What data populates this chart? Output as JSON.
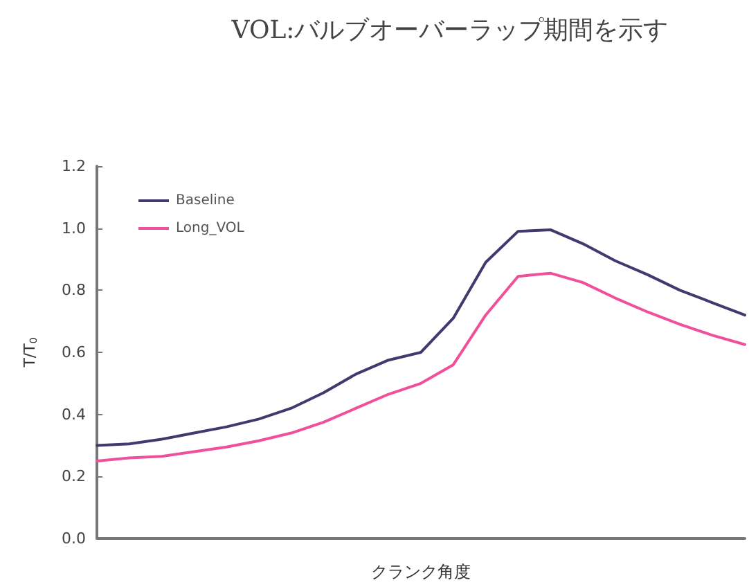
{
  "chart_data": {
    "type": "line",
    "title": "VOL:バルブオーバーラップ期間を示す",
    "xlabel": "クランク角度",
    "ylabel": "T/T$_{0}$",
    "categories": [
      null,
      null,
      null,
      null,
      null,
      null,
      null,
      null,
      null,
      null,
      null,
      null,
      null,
      null,
      null,
      null,
      null,
      null,
      null,
      null,
      null
    ],
    "series": [
      {
        "name": "Baseline",
        "color": "#413a6e",
        "values": [
          0.3,
          0.305,
          0.32,
          0.34,
          0.36,
          0.385,
          0.42,
          0.47,
          0.53,
          0.575,
          0.6,
          0.71,
          0.89,
          0.99,
          0.995,
          0.95,
          0.895,
          0.85,
          0.8,
          0.76,
          0.72
        ]
      },
      {
        "name": "Long_VOL",
        "color": "#f0509a",
        "values": [
          0.25,
          0.26,
          0.265,
          0.28,
          0.295,
          0.315,
          0.34,
          0.375,
          0.42,
          0.465,
          0.5,
          0.56,
          0.72,
          0.845,
          0.855,
          0.825,
          0.775,
          0.73,
          0.69,
          0.655,
          0.625
        ]
      }
    ],
    "ylim": [
      0,
      1.2
    ],
    "yticks": [
      {
        "value": 0,
        "label": "0.0"
      },
      0.2,
      0.4,
      0.6,
      0.8,
      {
        "value": 1,
        "label": "1.0"
      },
      1.2
    ],
    "tick_labels": "y",
    "grid": false,
    "legend": "top left",
    "marker": "none",
    "line_style": "solid"
  }
}
